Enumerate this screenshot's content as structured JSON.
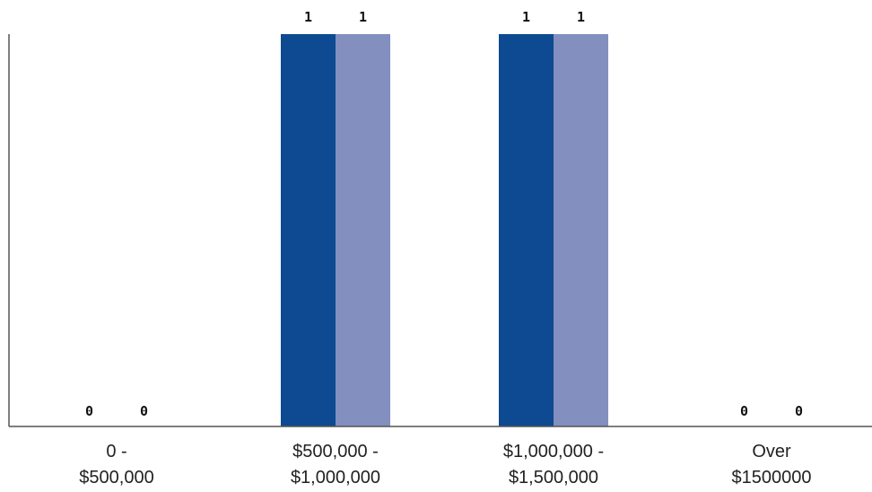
{
  "chart_data": {
    "type": "bar",
    "categories": [
      [
        "0 -",
        "$500,000"
      ],
      [
        "$500,000 -",
        "$1,000,000"
      ],
      [
        "$1,000,000 -",
        "$1,500,000"
      ],
      [
        "Over",
        "$1500000"
      ]
    ],
    "series": [
      {
        "values": [
          0,
          1,
          1,
          0
        ],
        "color": "#0d4a91"
      },
      {
        "values": [
          0,
          1,
          1,
          0
        ],
        "color": "#838fbe"
      }
    ],
    "ylim": [
      0,
      1
    ],
    "grid": false,
    "data_labels": true,
    "legend": "none"
  },
  "colors": {
    "axis": "#555555",
    "text": "#222222"
  }
}
